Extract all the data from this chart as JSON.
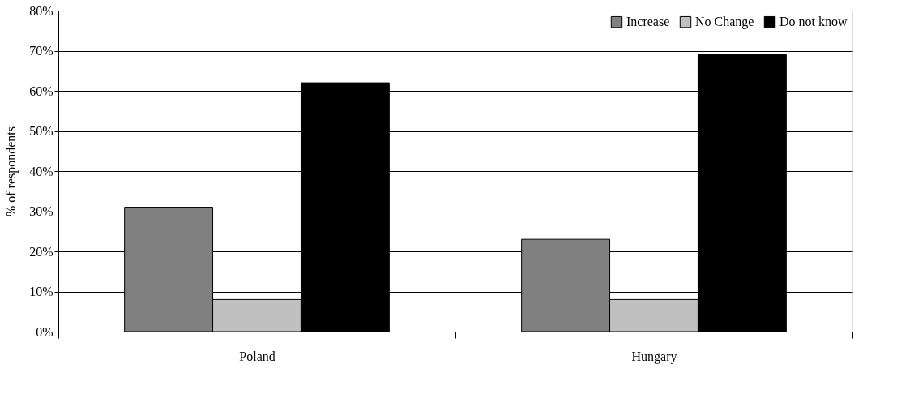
{
  "chart_data": {
    "type": "bar",
    "ylabel": "% of respondents",
    "categories": [
      "Poland",
      "Hungary"
    ],
    "series": [
      {
        "name": "Increase",
        "color": "#808080",
        "values": [
          31,
          23
        ]
      },
      {
        "name": "No Change",
        "color": "#c0c0c0",
        "values": [
          8,
          8
        ]
      },
      {
        "name": "Do not know",
        "color": "#000000",
        "values": [
          62,
          69
        ]
      }
    ],
    "ylim": [
      0,
      80
    ],
    "yticks": [
      {
        "value": 0,
        "label": "0%"
      },
      {
        "value": 10,
        "label": "10%"
      },
      {
        "value": 20,
        "label": "20%"
      },
      {
        "value": 30,
        "label": "30%"
      },
      {
        "value": 40,
        "label": "40%"
      },
      {
        "value": 50,
        "label": "50%"
      },
      {
        "value": 60,
        "label": "60%"
      },
      {
        "value": 70,
        "label": "70%"
      },
      {
        "value": 80,
        "label": "80%"
      }
    ],
    "grid": "y",
    "legend": "top right"
  }
}
